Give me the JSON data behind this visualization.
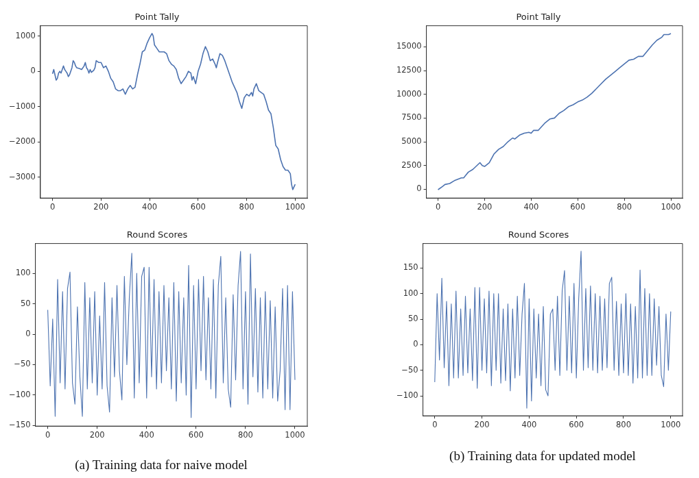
{
  "chart_data": [
    {
      "type": "line",
      "title": "Point Tally",
      "marker": "none",
      "xlim": [
        -50,
        1050
      ],
      "xticks": [
        0,
        200,
        400,
        600,
        800,
        1000
      ],
      "ylim": [
        -3590,
        1290
      ],
      "yticks": [
        -3000,
        -2000,
        -1000,
        0,
        1000
      ],
      "x": [
        0,
        5,
        10,
        15,
        20,
        25,
        30,
        35,
        40,
        45,
        50,
        55,
        60,
        65,
        70,
        80,
        85,
        90,
        95,
        100,
        110,
        120,
        130,
        135,
        140,
        145,
        150,
        155,
        160,
        170,
        175,
        180,
        190,
        200,
        210,
        220,
        230,
        240,
        250,
        260,
        270,
        280,
        290,
        300,
        310,
        320,
        330,
        340,
        350,
        360,
        370,
        380,
        390,
        400,
        410,
        415,
        420,
        430,
        440,
        450,
        460,
        470,
        480,
        490,
        500,
        510,
        520,
        530,
        540,
        550,
        560,
        570,
        575,
        580,
        590,
        600,
        610,
        620,
        630,
        640,
        650,
        660,
        670,
        675,
        680,
        690,
        700,
        710,
        720,
        730,
        740,
        750,
        760,
        770,
        780,
        790,
        800,
        810,
        820,
        825,
        830,
        840,
        850,
        860,
        870,
        880,
        890,
        900,
        910,
        920,
        930,
        940,
        950,
        960,
        970,
        980,
        985,
        990,
        1000
      ],
      "series": [
        {
          "color": "#4c72b0",
          "values": [
            -70,
            50,
            -100,
            -250,
            -200,
            -50,
            0,
            -50,
            50,
            150,
            50,
            0,
            -50,
            -150,
            -100,
            100,
            300,
            250,
            150,
            100,
            80,
            50,
            150,
            250,
            100,
            50,
            -50,
            50,
            -30,
            30,
            100,
            300,
            250,
            250,
            100,
            150,
            0,
            -200,
            -300,
            -500,
            -550,
            -550,
            -500,
            -650,
            -500,
            -400,
            -500,
            -450,
            -100,
            200,
            550,
            600,
            800,
            950,
            1070,
            1000,
            750,
            650,
            550,
            550,
            550,
            500,
            300,
            200,
            150,
            50,
            -200,
            -350,
            -250,
            -150,
            0,
            -50,
            -250,
            -150,
            -350,
            0,
            200,
            500,
            700,
            550,
            300,
            350,
            200,
            100,
            250,
            500,
            450,
            300,
            100,
            -100,
            -300,
            -450,
            -600,
            -850,
            -1050,
            -750,
            -650,
            -700,
            -600,
            -700,
            -500,
            -350,
            -550,
            -600,
            -650,
            -850,
            -1100,
            -1200,
            -1600,
            -2100,
            -2200,
            -2500,
            -2700,
            -2800,
            -2800,
            -2900,
            -3200,
            -3350,
            -3200
          ]
        }
      ]
    },
    {
      "type": "line",
      "title": "Point Tally",
      "marker": "none",
      "xlim": [
        -50,
        1050
      ],
      "xticks": [
        0,
        200,
        400,
        600,
        800,
        1000
      ],
      "ylim": [
        -930,
        17230
      ],
      "yticks": [
        0,
        2500,
        5000,
        7500,
        10000,
        12500,
        15000
      ],
      "x": [
        0,
        20,
        30,
        50,
        70,
        100,
        110,
        130,
        150,
        180,
        190,
        200,
        220,
        240,
        260,
        280,
        300,
        320,
        330,
        350,
        370,
        390,
        400,
        410,
        430,
        460,
        480,
        500,
        520,
        540,
        560,
        580,
        600,
        620,
        640,
        660,
        680,
        700,
        720,
        740,
        760,
        780,
        800,
        820,
        840,
        860,
        880,
        900,
        920,
        940,
        960,
        970,
        990,
        1000
      ],
      "series": [
        {
          "color": "#4c72b0",
          "values": [
            -50,
            300,
            500,
            600,
            900,
            1200,
            1200,
            1800,
            2100,
            2800,
            2500,
            2400,
            2800,
            3700,
            4200,
            4500,
            5000,
            5400,
            5300,
            5700,
            5900,
            6000,
            5900,
            6200,
            6200,
            7000,
            7400,
            7500,
            8000,
            8300,
            8700,
            8900,
            9200,
            9400,
            9700,
            10100,
            10600,
            11100,
            11600,
            12000,
            12400,
            12800,
            13200,
            13600,
            13700,
            14000,
            14000,
            14600,
            15200,
            15700,
            16000,
            16300,
            16300,
            16400
          ]
        }
      ]
    },
    {
      "type": "line",
      "title": "Round Scores",
      "marker": "none",
      "xlim": [
        -50,
        1050
      ],
      "xticks": [
        0,
        200,
        400,
        600,
        800,
        1000
      ],
      "ylim": [
        -151,
        149
      ],
      "yticks": [
        -150,
        -100,
        -50,
        0,
        50,
        100
      ],
      "x": [
        0,
        10,
        20,
        30,
        40,
        50,
        60,
        70,
        80,
        90,
        100,
        110,
        120,
        130,
        140,
        150,
        160,
        170,
        180,
        190,
        200,
        210,
        220,
        230,
        240,
        250,
        260,
        270,
        280,
        290,
        300,
        310,
        320,
        330,
        340,
        350,
        360,
        370,
        380,
        390,
        400,
        410,
        420,
        430,
        440,
        450,
        460,
        470,
        480,
        490,
        500,
        510,
        520,
        530,
        540,
        550,
        560,
        570,
        580,
        590,
        600,
        610,
        620,
        630,
        640,
        650,
        660,
        670,
        680,
        690,
        700,
        710,
        720,
        730,
        740,
        750,
        760,
        770,
        780,
        790,
        800,
        810,
        820,
        830,
        840,
        850,
        860,
        870,
        880,
        890,
        900,
        910,
        920,
        930,
        940,
        950,
        960,
        970,
        980,
        990,
        1000
      ],
      "series": [
        {
          "color": "#4c72b0",
          "values": [
            40,
            -85,
            25,
            -135,
            90,
            -80,
            70,
            -90,
            75,
            102,
            -80,
            -115,
            45,
            -70,
            -135,
            85,
            -90,
            60,
            -80,
            70,
            -100,
            30,
            -90,
            85,
            -85,
            -128,
            60,
            -70,
            80,
            -60,
            -108,
            95,
            -50,
            60,
            133,
            -105,
            100,
            -80,
            95,
            110,
            -105,
            110,
            -70,
            90,
            -90,
            70,
            -80,
            80,
            -60,
            60,
            -90,
            85,
            -110,
            70,
            -80,
            60,
            -100,
            113,
            -137,
            80,
            -90,
            90,
            -60,
            95,
            -75,
            60,
            -90,
            90,
            -105,
            80,
            128,
            -80,
            60,
            -90,
            -120,
            65,
            -75,
            80,
            136,
            -90,
            70,
            -115,
            132,
            -70,
            75,
            -95,
            60,
            -105,
            70,
            -90,
            55,
            -105,
            45,
            -110,
            -60,
            75,
            -124,
            80,
            -124,
            70,
            -75
          ]
        }
      ],
      "annotations": [
        "(a) Training data for naive model"
      ]
    },
    {
      "type": "line",
      "title": "Round Scores",
      "marker": "none",
      "xlim": [
        -50,
        1050
      ],
      "xticks": [
        0,
        200,
        400,
        600,
        800,
        1000
      ],
      "ylim": [
        -139,
        198
      ],
      "yticks": [
        -100,
        -50,
        0,
        50,
        100,
        150
      ],
      "x": [
        0,
        10,
        20,
        30,
        40,
        50,
        60,
        70,
        80,
        90,
        100,
        110,
        120,
        130,
        140,
        150,
        160,
        170,
        180,
        190,
        200,
        210,
        220,
        230,
        240,
        250,
        260,
        270,
        280,
        290,
        300,
        310,
        320,
        330,
        340,
        350,
        360,
        370,
        380,
        390,
        400,
        410,
        420,
        430,
        440,
        450,
        460,
        470,
        480,
        490,
        500,
        510,
        520,
        530,
        540,
        550,
        560,
        570,
        580,
        590,
        600,
        610,
        620,
        630,
        640,
        650,
        660,
        670,
        680,
        690,
        700,
        710,
        720,
        730,
        740,
        750,
        760,
        770,
        780,
        790,
        800,
        810,
        820,
        830,
        840,
        850,
        860,
        870,
        880,
        890,
        900,
        910,
        920,
        930,
        940,
        950,
        960,
        970,
        980,
        990,
        1000
      ],
      "series": [
        {
          "color": "#4c72b0",
          "values": [
            -73,
            100,
            -30,
            130,
            -45,
            85,
            -80,
            80,
            -65,
            105,
            -65,
            70,
            -60,
            95,
            -55,
            70,
            -70,
            112,
            -85,
            112,
            -50,
            90,
            -55,
            105,
            -80,
            100,
            -50,
            100,
            -75,
            70,
            -70,
            80,
            -90,
            70,
            -65,
            95,
            -60,
            60,
            120,
            -124,
            90,
            -110,
            70,
            -65,
            60,
            -80,
            75,
            -88,
            -100,
            60,
            70,
            -50,
            95,
            -60,
            105,
            145,
            -50,
            95,
            -55,
            120,
            -65,
            90,
            183,
            -50,
            110,
            -45,
            115,
            -50,
            100,
            -55,
            95,
            -50,
            90,
            -45,
            120,
            132,
            -50,
            85,
            -60,
            80,
            -55,
            100,
            -60,
            80,
            -75,
            75,
            -65,
            146,
            -65,
            110,
            -60,
            100,
            -60,
            90,
            -40,
            75,
            -60,
            -82,
            60,
            -50,
            65
          ]
        }
      ],
      "annotations": [
        "(b) Training data for updated model"
      ]
    }
  ]
}
